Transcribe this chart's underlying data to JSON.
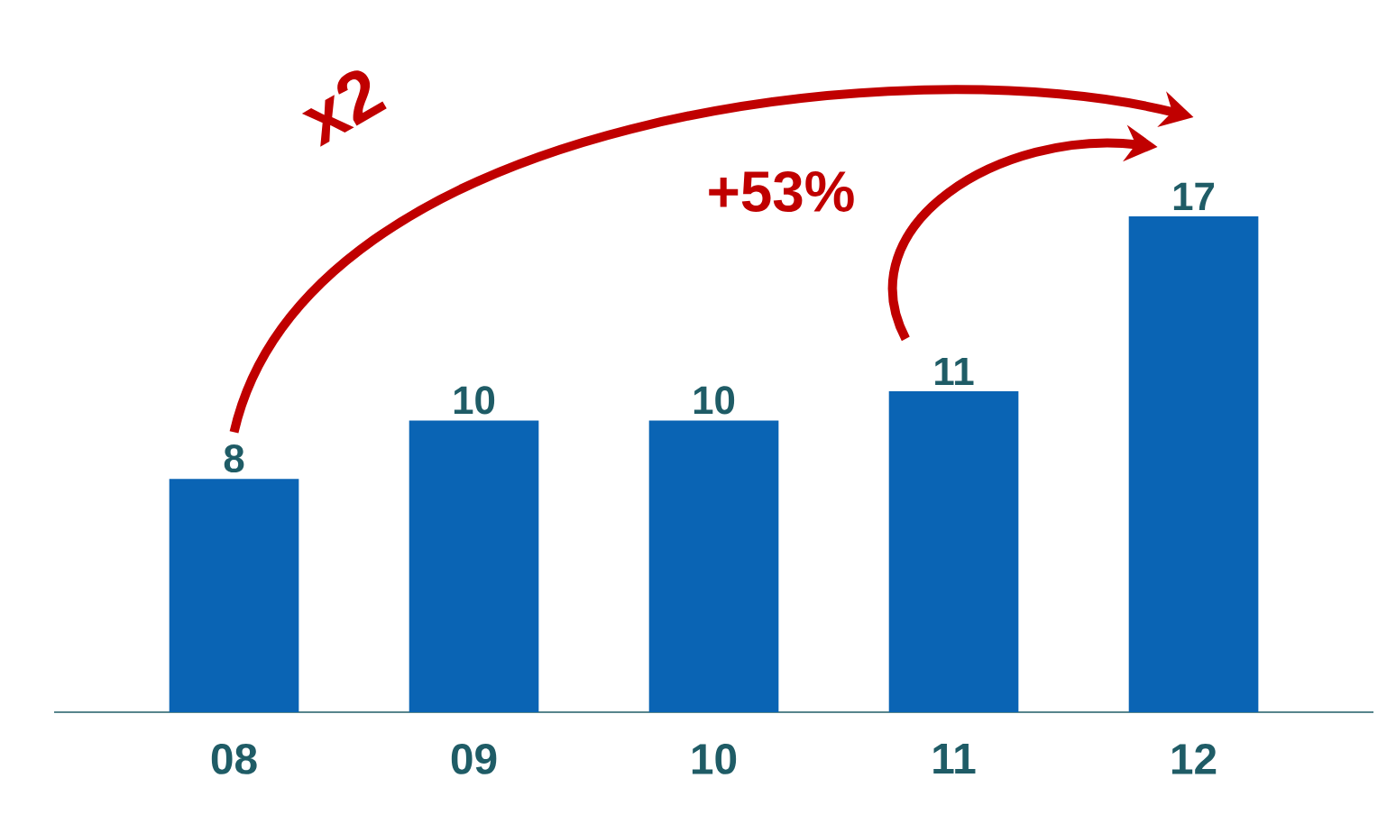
{
  "chart_data": {
    "type": "bar",
    "categories": [
      "08",
      "09",
      "10",
      "11",
      "12"
    ],
    "values": [
      8,
      10,
      10,
      11,
      17
    ],
    "color": "#0a64b4",
    "data_labels": true,
    "annotations": [
      "x2",
      "+53%"
    ]
  }
}
